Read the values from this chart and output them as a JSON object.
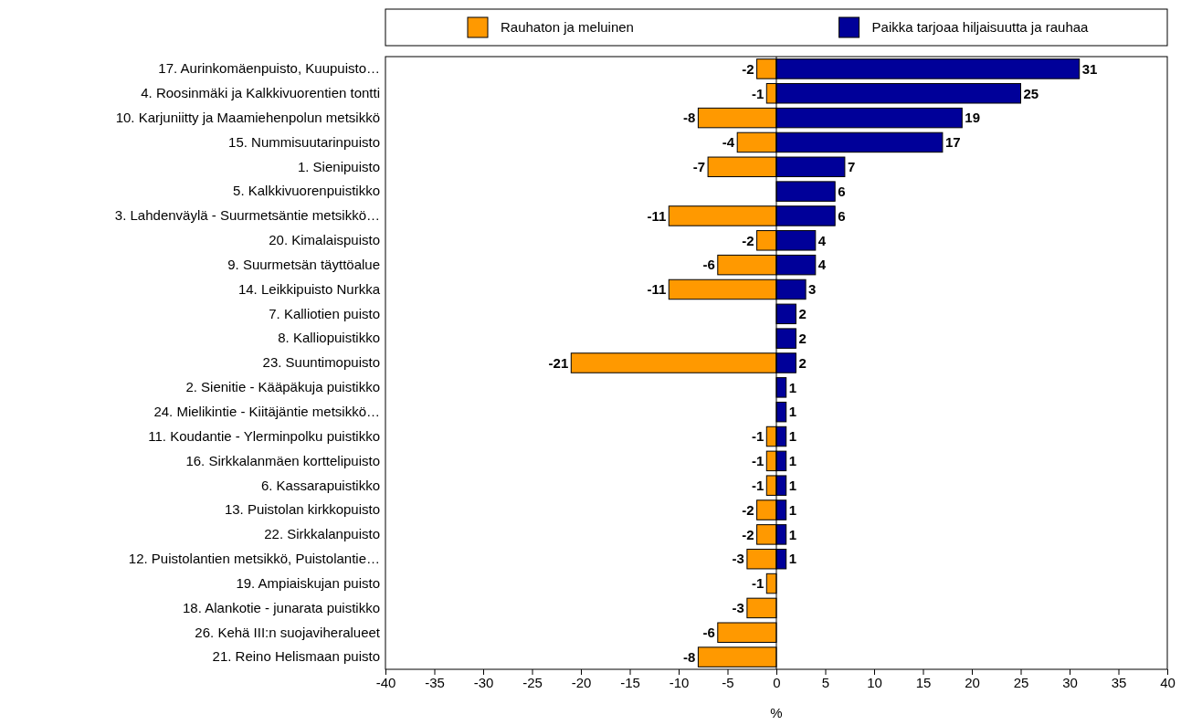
{
  "chart_data": {
    "type": "bar",
    "orientation": "horizontal",
    "stacked": true,
    "ref_lines": [
      {
        "axis": "x",
        "value": 0,
        "color": "#000000"
      }
    ],
    "xlabel": "%",
    "legend": "top",
    "grid": false,
    "data_labels": true,
    "categories": [
      "17. Aurinkomäenpuisto, Kuupuisto…",
      "4. Roosinmäki ja Kalkkivuorentien tontti",
      "10. Karjuniitty ja Maamiehenpolun metsikkö",
      "15. Nummisuutarinpuisto",
      "1. Sienipuisto",
      "5. Kalkkivuorenpuistikko",
      "3. Lahdenväylä - Suurmetsäntie metsikkö…",
      "20. Kimalaispuisto",
      "9. Suurmetsän täyttöalue",
      "14. Leikkipuisto Nurkka",
      "7. Kalliotien puisto",
      "8. Kalliopuistikko",
      "23. Suuntimopuisto",
      "2. Sienitie - Kääpäkuja puistikko",
      "24. Mielikintie - Kiitäjäntie metsikkö…",
      "11. Koudantie - Ylerminpolku puistikko",
      "16. Sirkkalanmäen korttelipuisto",
      "6. Kassarapuistikko",
      "13. Puistolan kirkkopuisto",
      "22. Sirkkalanpuisto",
      "12. Puistolantien metsikkö, Puistolantie…",
      "19. Ampiaiskujan puisto",
      "18. Alankotie - junarata puistikko",
      "26. Kehä III:n suojaviheralueet",
      "21. Reino Helismaan puisto"
    ],
    "series": [
      {
        "name": "Rauhaton ja meluinen",
        "color": "#ff9900",
        "values": [
          -2,
          -1,
          -8,
          -4,
          -7,
          null,
          -11,
          -2,
          -6,
          -11,
          null,
          null,
          -21,
          null,
          null,
          -1,
          -1,
          -1,
          -2,
          -2,
          -3,
          -1,
          -3,
          -6,
          -8
        ]
      },
      {
        "name": "Paikka tarjoaa hiljaisuutta ja rauhaa",
        "color": "#000099",
        "values": [
          31,
          25,
          19,
          17,
          7,
          6,
          6,
          4,
          4,
          3,
          2,
          2,
          2,
          1,
          1,
          1,
          1,
          1,
          1,
          1,
          1,
          null,
          null,
          null,
          null
        ]
      }
    ],
    "xlim": [
      -40,
      40
    ],
    "xticks": [
      -40,
      -35,
      -30,
      -25,
      -20,
      -15,
      -10,
      -5,
      0,
      5,
      10,
      15,
      20,
      25,
      30,
      35,
      40
    ]
  }
}
